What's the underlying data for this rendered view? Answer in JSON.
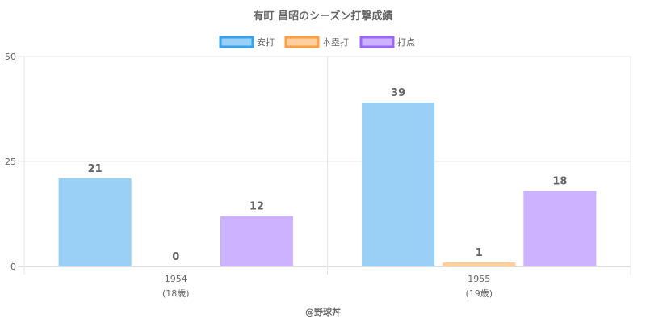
{
  "chart_data": {
    "type": "bar",
    "title": "有町 昌昭のシーズン打撃成績",
    "categories": [
      {
        "label": "1954",
        "sublabel": "(18歳)"
      },
      {
        "label": "1955",
        "sublabel": "(19歳)"
      }
    ],
    "series": [
      {
        "name": "安打",
        "values": [
          21,
          39
        ],
        "fill": "#9ad0f5",
        "stroke": "#36a2eb"
      },
      {
        "name": "本塁打",
        "values": [
          0,
          1
        ],
        "fill": "#ffcf9f",
        "stroke": "#ff9f40"
      },
      {
        "name": "打点",
        "values": [
          12,
          18
        ],
        "fill": "#cdb3ff",
        "stroke": "#9966ff"
      }
    ],
    "ylim": [
      0,
      50
    ],
    "yticks": [
      0,
      25,
      50
    ],
    "grid": true,
    "legend_position": "top",
    "credit": "@野球丼"
  }
}
